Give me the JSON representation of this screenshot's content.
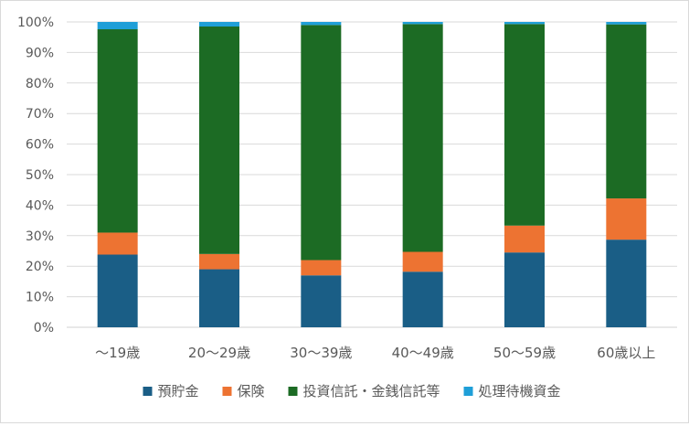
{
  "chart_data": {
    "type": "bar",
    "stacked": true,
    "orientation": "vertical",
    "normalized_percent": true,
    "categories": [
      "～19歳",
      "20～29歳",
      "30～39歳",
      "40～49歳",
      "50～59歳",
      "60歳以上"
    ],
    "series": [
      {
        "name": "預貯金",
        "color": "#1a5e86",
        "values": [
          23.8,
          19.0,
          17.0,
          18.2,
          24.5,
          28.7
        ]
      },
      {
        "name": "保険",
        "color": "#ed7332",
        "values": [
          7.2,
          5.0,
          5.0,
          6.5,
          8.8,
          13.5
        ]
      },
      {
        "name": "投資信託・金銭信託等",
        "color": "#1c6b24",
        "values": [
          66.6,
          74.5,
          77.0,
          74.6,
          66.0,
          57.0
        ]
      },
      {
        "name": "処理待機資金",
        "color": "#1f9fd8",
        "values": [
          2.4,
          1.5,
          1.0,
          0.7,
          0.7,
          0.8
        ]
      }
    ],
    "ylim": [
      0,
      100
    ],
    "yticks": [
      "0%",
      "10%",
      "20%",
      "30%",
      "40%",
      "50%",
      "60%",
      "70%",
      "80%",
      "90%",
      "100%"
    ],
    "grid": true,
    "legend_position": "bottom"
  }
}
